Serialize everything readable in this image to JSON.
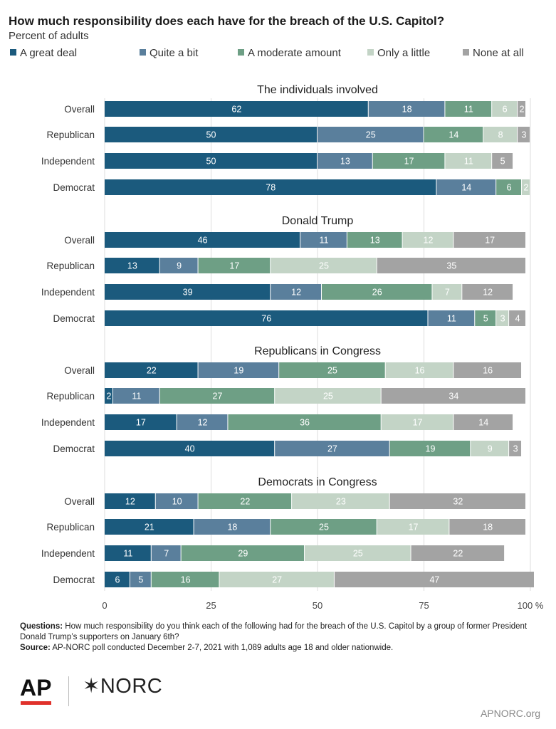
{
  "chart_data": {
    "type": "bar",
    "stacked": true,
    "orientation": "horizontal",
    "title": "How much responsibility does each have for the breach of the U.S. Capitol?",
    "subtitle": "Percent of adults",
    "series_names": [
      "A great deal",
      "Quite a bit",
      "A moderate amount",
      "Only a little",
      "None at all"
    ],
    "colors": [
      "#1b5a7d",
      "#5a7f9c",
      "#6e9f85",
      "#c3d4c6",
      "#a3a3a3"
    ],
    "label_colors": [
      "#ffffff",
      "#ffffff",
      "#ffffff",
      "#ffffff",
      "#ffffff"
    ],
    "xlim": [
      0,
      100
    ],
    "xticks": [
      "0",
      "25",
      "50",
      "75",
      "100 %"
    ],
    "xtick_values": [
      0,
      25,
      50,
      75,
      100
    ],
    "grid": true,
    "legend": "top",
    "panels": [
      {
        "title": "The individuals involved",
        "rows": [
          {
            "label": "Overall",
            "values": [
              62,
              18,
              11,
              6,
              2
            ]
          },
          {
            "label": "Republican",
            "values": [
              50,
              25,
              14,
              8,
              3
            ]
          },
          {
            "label": "Independent",
            "values": [
              50,
              13,
              17,
              11,
              5
            ]
          },
          {
            "label": "Democrat",
            "values": [
              78,
              14,
              6,
              2,
              null
            ]
          }
        ]
      },
      {
        "title": "Donald Trump",
        "rows": [
          {
            "label": "Overall",
            "values": [
              46,
              11,
              13,
              12,
              17
            ]
          },
          {
            "label": "Republican",
            "values": [
              13,
              9,
              17,
              25,
              35
            ]
          },
          {
            "label": "Independent",
            "values": [
              39,
              12,
              26,
              7,
              12
            ]
          },
          {
            "label": "Democrat",
            "values": [
              76,
              11,
              5,
              3,
              4
            ]
          }
        ]
      },
      {
        "title": "Republicans in Congress",
        "rows": [
          {
            "label": "Overall",
            "values": [
              22,
              19,
              25,
              16,
              16
            ]
          },
          {
            "label": "Republican",
            "values": [
              2,
              11,
              27,
              25,
              34
            ]
          },
          {
            "label": "Independent",
            "values": [
              17,
              12,
              36,
              17,
              14
            ]
          },
          {
            "label": "Democrat",
            "values": [
              40,
              27,
              19,
              9,
              3
            ]
          }
        ]
      },
      {
        "title": "Democrats in Congress",
        "rows": [
          {
            "label": "Overall",
            "values": [
              12,
              10,
              22,
              23,
              32
            ]
          },
          {
            "label": "Republican",
            "values": [
              21,
              18,
              25,
              17,
              18
            ]
          },
          {
            "label": "Independent",
            "values": [
              11,
              7,
              29,
              25,
              22
            ]
          },
          {
            "label": "Democrat",
            "values": [
              6,
              5,
              16,
              27,
              47
            ]
          }
        ]
      }
    ]
  },
  "notes": {
    "questions_label": "Questions:",
    "questions_text": " How much responsibility do you think each of the following had for the breach of the U.S. Capitol by a group of former President Donald Trump’s supporters on January 6th?",
    "source_label": "Source:",
    "source_text": " AP-NORC poll conducted December 2-7, 2021 with 1,089 adults age 18 and older nationwide."
  },
  "footer": {
    "ap_logo_text": "AP",
    "norc_logo_text": "NORC",
    "site": "APNORC.org"
  }
}
